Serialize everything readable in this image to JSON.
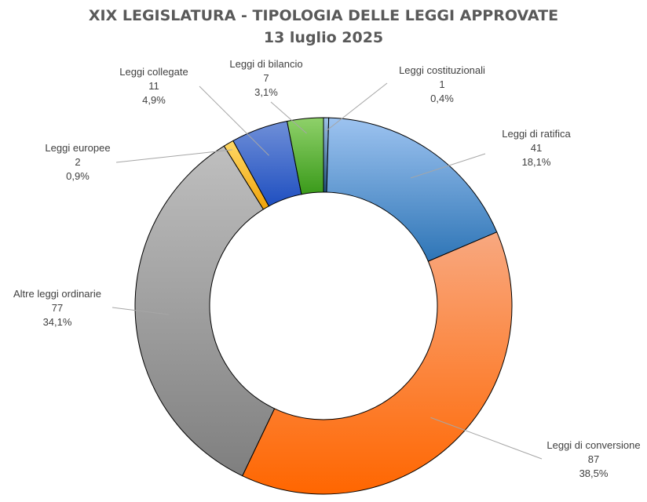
{
  "chart_data": {
    "type": "pie",
    "style": "donut",
    "title": "XIX LEGISLATURA - TIPOLOGIA DELLE LEGGI APPROVATE",
    "subtitle": "13 luglio 2025",
    "legend": "none",
    "slices": [
      {
        "name": "Leggi costituzionali",
        "value": 1,
        "percent": "0,4%",
        "value_label": "1",
        "color_start": "#9dc3e6",
        "color_end": "#1f4e79"
      },
      {
        "name": "Leggi di ratifica",
        "value": 41,
        "percent": "18,1%",
        "value_label": "41",
        "color_start": "#9dc3f0",
        "color_end": "#2e75b6"
      },
      {
        "name": "Leggi di conversione",
        "value": 87,
        "percent": "38,5%",
        "value_label": "87",
        "color_start": "#f8a880",
        "color_end": "#ff6600"
      },
      {
        "name": "Altre leggi ordinarie",
        "value": 77,
        "percent": "34,1%",
        "value_label": "77",
        "color_start": "#bfbfbf",
        "color_end": "#7f7f7f"
      },
      {
        "name": "Leggi europee",
        "value": 2,
        "percent": "0,9%",
        "value_label": "2",
        "color_start": "#ffd966",
        "color_end": "#f0a30a"
      },
      {
        "name": "Leggi collegate",
        "value": 11,
        "percent": "4,9%",
        "value_label": "11",
        "color_start": "#6f8fd8",
        "color_end": "#1f4fc0"
      },
      {
        "name": "Leggi di bilancio",
        "value": 7,
        "percent": "3,1%",
        "value_label": "7",
        "color_start": "#8fd16a",
        "color_end": "#3a9a1a"
      }
    ]
  }
}
